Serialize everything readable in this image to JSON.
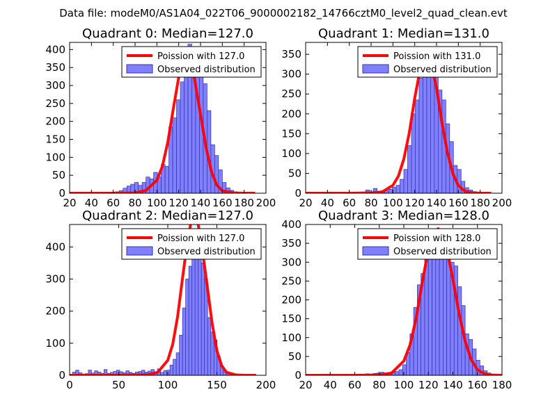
{
  "suptitle": "Data file: modeM0/AS1A04_022T06_9000002182_14766cztM0_level2_quad_clean.evt",
  "colors": {
    "bar_fill": "#8080ff",
    "bar_edge": "#3030a8",
    "line": "#ff0000",
    "frame": "#000000",
    "legend_edge": "#000000"
  },
  "chart_data": [
    {
      "type": "bar",
      "title": "Quadrant 0: Median=127.0",
      "xlabel": "",
      "ylabel": "",
      "xlim": [
        20,
        200
      ],
      "ylim": [
        0,
        420
      ],
      "xticks": [
        20,
        40,
        60,
        80,
        100,
        120,
        140,
        160,
        180,
        200
      ],
      "yticks": [
        0,
        50,
        100,
        150,
        200,
        250,
        300,
        350,
        400
      ],
      "legend": [
        "Poission with 127.0",
        "Observed distribution"
      ],
      "legend_position": "upper right",
      "bin_width": 3.5,
      "bars": [
        [
          55,
          1
        ],
        [
          58.5,
          2
        ],
        [
          62,
          4
        ],
        [
          65.5,
          7
        ],
        [
          69,
          14
        ],
        [
          72.5,
          20
        ],
        [
          76,
          25
        ],
        [
          79.5,
          30
        ],
        [
          83,
          22
        ],
        [
          86.5,
          30
        ],
        [
          90,
          45
        ],
        [
          93.5,
          40
        ],
        [
          97,
          58
        ],
        [
          100.5,
          45
        ],
        [
          104,
          80
        ],
        [
          107.5,
          75
        ],
        [
          111,
          185
        ],
        [
          114.5,
          210
        ],
        [
          118,
          260
        ],
        [
          121.5,
          310
        ],
        [
          125,
          390
        ],
        [
          128.5,
          415
        ],
        [
          132,
          385
        ],
        [
          135.5,
          370
        ],
        [
          139,
          335
        ],
        [
          142.5,
          305
        ],
        [
          146,
          230
        ],
        [
          149.5,
          135
        ],
        [
          153,
          105
        ],
        [
          156.5,
          65
        ],
        [
          160,
          30
        ],
        [
          163.5,
          15
        ],
        [
          167,
          8
        ],
        [
          170.5,
          4
        ]
      ],
      "poisson": {
        "x": [
          20,
          40,
          60,
          80,
          90,
          100,
          105,
          110,
          115,
          120,
          124,
          127,
          130,
          134,
          140,
          145,
          150,
          155,
          160,
          170,
          180,
          190
        ],
        "y": [
          0,
          0,
          0,
          1,
          8,
          36,
          75,
          142,
          234,
          323,
          372,
          385,
          376,
          327,
          219,
          129,
          60,
          22,
          7,
          1,
          0,
          0
        ]
      }
    },
    {
      "type": "bar",
      "title": "Quadrant 1: Median=131.0",
      "xlabel": "",
      "ylabel": "",
      "xlim": [
        20,
        200
      ],
      "ylim": [
        0,
        380
      ],
      "xticks": [
        20,
        40,
        60,
        80,
        100,
        120,
        140,
        160,
        180,
        200
      ],
      "yticks": [
        0,
        50,
        100,
        150,
        200,
        250,
        300,
        350
      ],
      "legend": [
        "Poission with 131.0",
        "Observed distribution"
      ],
      "legend_position": "upper right",
      "bin_width": 3.5,
      "bars": [
        [
          75,
          8
        ],
        [
          78.5,
          3
        ],
        [
          82,
          12
        ],
        [
          85.5,
          5
        ],
        [
          89,
          6
        ],
        [
          92.5,
          6
        ],
        [
          96,
          10
        ],
        [
          99.5,
          15
        ],
        [
          103,
          20
        ],
        [
          106.5,
          35
        ],
        [
          110,
          60
        ],
        [
          113.5,
          120
        ],
        [
          117,
          200
        ],
        [
          120.5,
          235
        ],
        [
          124,
          290
        ],
        [
          127.5,
          330
        ],
        [
          131,
          350
        ],
        [
          134.5,
          320
        ],
        [
          138,
          300
        ],
        [
          141.5,
          260
        ],
        [
          145,
          235
        ],
        [
          148.5,
          175
        ],
        [
          152,
          130
        ],
        [
          155.5,
          70
        ],
        [
          159,
          60
        ],
        [
          162.5,
          30
        ],
        [
          166,
          14
        ],
        [
          169.5,
          8
        ],
        [
          173,
          4
        ],
        [
          176.5,
          2
        ]
      ],
      "poisson": {
        "x": [
          20,
          40,
          60,
          80,
          90,
          100,
          105,
          110,
          115,
          120,
          125,
          128,
          131,
          134,
          140,
          145,
          150,
          155,
          160,
          165,
          170,
          180,
          190
        ],
        "y": [
          0,
          0,
          0,
          1,
          3,
          20,
          43,
          86,
          152,
          240,
          313,
          349,
          356,
          341,
          265,
          178,
          102,
          49,
          19,
          7,
          2,
          0,
          0
        ]
      }
    },
    {
      "type": "bar",
      "title": "Quadrant 2: Median=127.0",
      "xlabel": "",
      "ylabel": "",
      "xlim": [
        0,
        200
      ],
      "ylim": [
        0,
        470
      ],
      "xticks": [
        0,
        50,
        100,
        150,
        200
      ],
      "yticks": [
        0,
        100,
        200,
        300,
        400
      ],
      "legend": [
        "Poission with 127.0",
        "Observed distribution"
      ],
      "legend_position": "upper right",
      "bin_width": 3.2,
      "bars": [
        [
          3,
          10
        ],
        [
          6.2,
          16
        ],
        [
          9.4,
          8
        ],
        [
          12.6,
          4
        ],
        [
          15.8,
          5
        ],
        [
          19,
          16
        ],
        [
          22.2,
          7
        ],
        [
          25.4,
          14
        ],
        [
          28.6,
          10
        ],
        [
          31.8,
          6
        ],
        [
          35,
          18
        ],
        [
          38.2,
          6
        ],
        [
          41.4,
          9
        ],
        [
          44.6,
          12
        ],
        [
          47.8,
          16
        ],
        [
          51,
          11
        ],
        [
          54.2,
          8
        ],
        [
          57.4,
          14
        ],
        [
          60.6,
          9
        ],
        [
          63.8,
          6
        ],
        [
          67,
          10
        ],
        [
          70.2,
          12
        ],
        [
          73.4,
          16
        ],
        [
          76.6,
          10
        ],
        [
          79.8,
          13
        ],
        [
          83,
          18
        ],
        [
          86.2,
          8
        ],
        [
          89.4,
          20
        ],
        [
          92.6,
          9
        ],
        [
          95.8,
          15
        ],
        [
          99,
          16
        ],
        [
          102.2,
          32
        ],
        [
          105.4,
          50
        ],
        [
          108.6,
          70
        ],
        [
          111.8,
          125
        ],
        [
          115,
          210
        ],
        [
          118.2,
          300
        ],
        [
          121.4,
          340
        ],
        [
          124.6,
          415
        ],
        [
          127.8,
          440
        ],
        [
          131,
          450
        ],
        [
          134.2,
          350
        ],
        [
          137.4,
          300
        ],
        [
          140.6,
          180
        ],
        [
          143.8,
          135
        ],
        [
          147,
          110
        ],
        [
          150.2,
          60
        ],
        [
          153.4,
          30
        ],
        [
          156.6,
          15
        ],
        [
          159.8,
          8
        ],
        [
          163,
          4
        ],
        [
          166.2,
          2
        ]
      ],
      "poisson": {
        "x": [
          0,
          50,
          80,
          90,
          100,
          105,
          110,
          115,
          120,
          124,
          127,
          130,
          134,
          140,
          145,
          150,
          155,
          160,
          170,
          180,
          190
        ],
        "y": [
          0,
          0,
          2,
          10,
          47,
          97,
          183,
          302,
          418,
          482,
          496,
          484,
          420,
          282,
          166,
          77,
          29,
          9,
          1,
          0,
          0
        ]
      }
    },
    {
      "type": "bar",
      "title": "Quadrant 3: Median=128.0",
      "xlabel": "",
      "ylabel": "",
      "xlim": [
        20,
        180
      ],
      "ylim": [
        0,
        400
      ],
      "xticks": [
        20,
        40,
        60,
        80,
        100,
        120,
        140,
        160,
        180
      ],
      "yticks": [
        0,
        50,
        100,
        150,
        200,
        250,
        300,
        350,
        400
      ],
      "legend": [
        "Poission with 128.0",
        "Observed distribution"
      ],
      "legend_position": "upper right",
      "bin_width": 3.0,
      "bars": [
        [
          60,
          2
        ],
        [
          63,
          3
        ],
        [
          66,
          2
        ],
        [
          69,
          4
        ],
        [
          72,
          3
        ],
        [
          75,
          5
        ],
        [
          78,
          6
        ],
        [
          81,
          8
        ],
        [
          84,
          4
        ],
        [
          87,
          6
        ],
        [
          90,
          8
        ],
        [
          93,
          10
        ],
        [
          96,
          15
        ],
        [
          99,
          28
        ],
        [
          102,
          60
        ],
        [
          105,
          110
        ],
        [
          108,
          180
        ],
        [
          111,
          240
        ],
        [
          114,
          270
        ],
        [
          117,
          320
        ],
        [
          120,
          355
        ],
        [
          123,
          370
        ],
        [
          126,
          380
        ],
        [
          129,
          385
        ],
        [
          132,
          375
        ],
        [
          135,
          330
        ],
        [
          138,
          300
        ],
        [
          141,
          290
        ],
        [
          144,
          235
        ],
        [
          147,
          185
        ],
        [
          150,
          110
        ],
        [
          153,
          95
        ],
        [
          156,
          70
        ],
        [
          159,
          40
        ],
        [
          162,
          25
        ],
        [
          165,
          12
        ],
        [
          168,
          6
        ],
        [
          171,
          3
        ]
      ],
      "poisson": {
        "x": [
          20,
          40,
          60,
          80,
          90,
          100,
          105,
          110,
          115,
          120,
          125,
          128,
          131,
          135,
          140,
          145,
          150,
          155,
          160,
          165,
          170,
          180
        ],
        "y": [
          0,
          0,
          0,
          1,
          6,
          38,
          80,
          150,
          246,
          334,
          381,
          389,
          377,
          337,
          255,
          165,
          90,
          41,
          15,
          5,
          1,
          0
        ]
      }
    }
  ]
}
